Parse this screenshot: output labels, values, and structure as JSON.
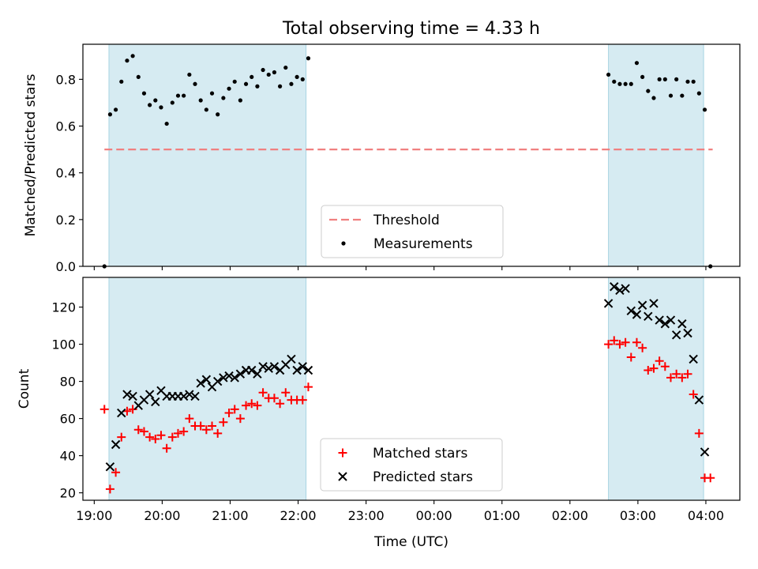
{
  "title": "Total observing time = 4.33 h",
  "chart_data": [
    {
      "type": "scatter",
      "ylabel": "Matched/Predicted stars",
      "xlabel": "",
      "xlim": [
        "18:50",
        "04:30"
      ],
      "ylim": [
        0,
        0.95
      ],
      "yticks": [
        0.0,
        0.2,
        0.4,
        0.6,
        0.8
      ],
      "ytick_labels": [
        "0.0",
        "0.2",
        "0.4",
        "0.6",
        "0.8"
      ],
      "shaded_intervals": [
        {
          "start": "19:13",
          "end": "22:07"
        },
        {
          "start": "02:34",
          "end": "03:58"
        }
      ],
      "threshold": {
        "name": "Threshold",
        "value": 0.5,
        "x_start": "19:09",
        "x_end": "04:06",
        "color": "#f08080",
        "style": "dashed"
      },
      "legend": {
        "position": "lower-center",
        "entries": [
          "Threshold",
          "Measurements"
        ]
      },
      "series": [
        {
          "name": "Measurements",
          "marker": "dot",
          "color": "#000000",
          "points": [
            [
              "19:09",
              0.0
            ],
            [
              "19:14",
              0.65
            ],
            [
              "19:19",
              0.67
            ],
            [
              "19:24",
              0.79
            ],
            [
              "19:29",
              0.88
            ],
            [
              "19:34",
              0.9
            ],
            [
              "19:39",
              0.81
            ],
            [
              "19:44",
              0.74
            ],
            [
              "19:49",
              0.69
            ],
            [
              "19:54",
              0.71
            ],
            [
              "19:59",
              0.68
            ],
            [
              "20:04",
              0.61
            ],
            [
              "20:09",
              0.7
            ],
            [
              "20:14",
              0.73
            ],
            [
              "20:19",
              0.73
            ],
            [
              "20:24",
              0.82
            ],
            [
              "20:29",
              0.78
            ],
            [
              "20:34",
              0.71
            ],
            [
              "20:39",
              0.67
            ],
            [
              "20:44",
              0.74
            ],
            [
              "20:49",
              0.65
            ],
            [
              "20:54",
              0.72
            ],
            [
              "20:59",
              0.76
            ],
            [
              "21:04",
              0.79
            ],
            [
              "21:09",
              0.71
            ],
            [
              "21:14",
              0.78
            ],
            [
              "21:19",
              0.81
            ],
            [
              "21:24",
              0.77
            ],
            [
              "21:29",
              0.84
            ],
            [
              "21:34",
              0.82
            ],
            [
              "21:39",
              0.83
            ],
            [
              "21:44",
              0.77
            ],
            [
              "21:49",
              0.85
            ],
            [
              "21:54",
              0.78
            ],
            [
              "21:59",
              0.81
            ],
            [
              "22:04",
              0.8
            ],
            [
              "22:09",
              0.89
            ],
            [
              "02:34",
              0.82
            ],
            [
              "02:39",
              0.79
            ],
            [
              "02:44",
              0.78
            ],
            [
              "02:49",
              0.78
            ],
            [
              "02:54",
              0.78
            ],
            [
              "02:59",
              0.87
            ],
            [
              "03:04",
              0.81
            ],
            [
              "03:09",
              0.75
            ],
            [
              "03:14",
              0.72
            ],
            [
              "03:19",
              0.8
            ],
            [
              "03:24",
              0.8
            ],
            [
              "03:29",
              0.73
            ],
            [
              "03:34",
              0.8
            ],
            [
              "03:39",
              0.73
            ],
            [
              "03:44",
              0.79
            ],
            [
              "03:49",
              0.79
            ],
            [
              "03:54",
              0.74
            ],
            [
              "03:59",
              0.67
            ],
            [
              "04:04",
              0.0
            ]
          ]
        }
      ]
    },
    {
      "type": "scatter",
      "ylabel": "Count",
      "xlabel": "Time (UTC)",
      "xlim": [
        "18:50",
        "04:30"
      ],
      "ylim": [
        16,
        136
      ],
      "yticks": [
        20,
        40,
        60,
        80,
        100,
        120
      ],
      "ytick_labels": [
        "20",
        "40",
        "60",
        "80",
        "100",
        "120"
      ],
      "xticks": [
        "19:00",
        "20:00",
        "21:00",
        "22:00",
        "23:00",
        "00:00",
        "01:00",
        "02:00",
        "03:00",
        "04:00"
      ],
      "shaded_intervals": [
        {
          "start": "19:13",
          "end": "22:07"
        },
        {
          "start": "02:34",
          "end": "03:58"
        }
      ],
      "legend": {
        "position": "lower-center",
        "entries": [
          "Matched stars",
          "Predicted stars"
        ]
      },
      "series": [
        {
          "name": "Matched stars",
          "marker": "plus",
          "color": "#ff0000",
          "points": [
            [
              "19:09",
              65
            ],
            [
              "19:14",
              22
            ],
            [
              "19:19",
              31
            ],
            [
              "19:24",
              50
            ],
            [
              "19:29",
              64
            ],
            [
              "19:34",
              65
            ],
            [
              "19:39",
              54
            ],
            [
              "19:44",
              53
            ],
            [
              "19:49",
              50
            ],
            [
              "19:54",
              49
            ],
            [
              "19:59",
              51
            ],
            [
              "20:04",
              44
            ],
            [
              "20:09",
              50
            ],
            [
              "20:14",
              52
            ],
            [
              "20:19",
              53
            ],
            [
              "20:24",
              60
            ],
            [
              "20:29",
              56
            ],
            [
              "20:34",
              56
            ],
            [
              "20:39",
              54
            ],
            [
              "20:44",
              56
            ],
            [
              "20:49",
              52
            ],
            [
              "20:54",
              58
            ],
            [
              "20:59",
              63
            ],
            [
              "21:04",
              65
            ],
            [
              "21:09",
              60
            ],
            [
              "21:14",
              67
            ],
            [
              "21:19",
              68
            ],
            [
              "21:24",
              67
            ],
            [
              "21:29",
              74
            ],
            [
              "21:34",
              71
            ],
            [
              "21:39",
              71
            ],
            [
              "21:44",
              68
            ],
            [
              "21:49",
              74
            ],
            [
              "21:54",
              70
            ],
            [
              "21:59",
              70
            ],
            [
              "22:04",
              70
            ],
            [
              "22:09",
              77
            ],
            [
              "02:34",
              100
            ],
            [
              "02:39",
              102
            ],
            [
              "02:44",
              100
            ],
            [
              "02:49",
              101
            ],
            [
              "02:54",
              93
            ],
            [
              "02:59",
              101
            ],
            [
              "03:04",
              98
            ],
            [
              "03:09",
              86
            ],
            [
              "03:14",
              87
            ],
            [
              "03:19",
              91
            ],
            [
              "03:24",
              88
            ],
            [
              "03:29",
              82
            ],
            [
              "03:34",
              84
            ],
            [
              "03:39",
              82
            ],
            [
              "03:44",
              84
            ],
            [
              "03:49",
              73
            ],
            [
              "03:54",
              52
            ],
            [
              "03:59",
              28
            ],
            [
              "04:04",
              28
            ]
          ]
        },
        {
          "name": "Predicted stars",
          "marker": "x",
          "color": "#000000",
          "points": [
            [
              "19:14",
              34
            ],
            [
              "19:19",
              46
            ],
            [
              "19:24",
              63
            ],
            [
              "19:29",
              73
            ],
            [
              "19:34",
              72
            ],
            [
              "19:39",
              67
            ],
            [
              "19:44",
              70
            ],
            [
              "19:49",
              73
            ],
            [
              "19:54",
              69
            ],
            [
              "19:59",
              75
            ],
            [
              "20:04",
              72
            ],
            [
              "20:09",
              72
            ],
            [
              "20:14",
              72
            ],
            [
              "20:19",
              72
            ],
            [
              "20:24",
              73
            ],
            [
              "20:29",
              72
            ],
            [
              "20:34",
              79
            ],
            [
              "20:39",
              81
            ],
            [
              "20:44",
              77
            ],
            [
              "20:49",
              80
            ],
            [
              "20:54",
              82
            ],
            [
              "20:59",
              83
            ],
            [
              "21:04",
              82
            ],
            [
              "21:09",
              84
            ],
            [
              "21:14",
              86
            ],
            [
              "21:19",
              86
            ],
            [
              "21:24",
              84
            ],
            [
              "21:29",
              88
            ],
            [
              "21:34",
              87
            ],
            [
              "21:39",
              88
            ],
            [
              "21:44",
              86
            ],
            [
              "21:49",
              89
            ],
            [
              "21:54",
              92
            ],
            [
              "21:59",
              86
            ],
            [
              "22:04",
              88
            ],
            [
              "22:09",
              86
            ],
            [
              "02:34",
              122
            ],
            [
              "02:39",
              131
            ],
            [
              "02:44",
              129
            ],
            [
              "02:49",
              130
            ],
            [
              "02:54",
              118
            ],
            [
              "02:59",
              116
            ],
            [
              "03:04",
              121
            ],
            [
              "03:09",
              115
            ],
            [
              "03:14",
              122
            ],
            [
              "03:19",
              113
            ],
            [
              "03:24",
              111
            ],
            [
              "03:29",
              113
            ],
            [
              "03:34",
              105
            ],
            [
              "03:39",
              111
            ],
            [
              "03:44",
              106
            ],
            [
              "03:49",
              92
            ],
            [
              "03:54",
              70
            ],
            [
              "03:59",
              42
            ]
          ]
        }
      ]
    }
  ]
}
